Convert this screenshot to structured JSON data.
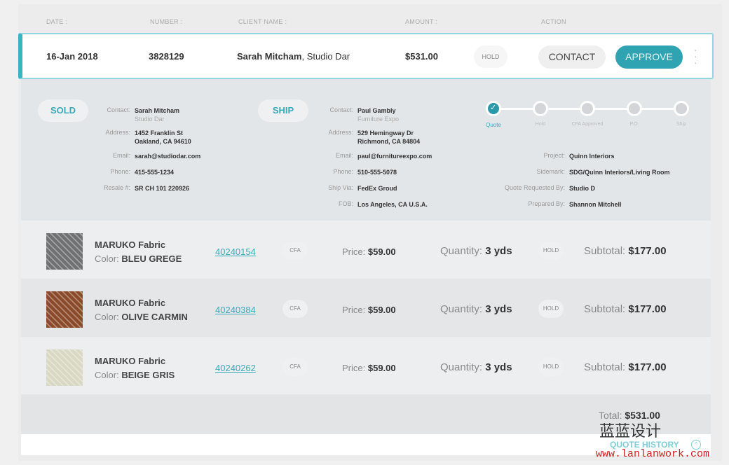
{
  "columns": [
    "DATE :",
    "NUMBER :",
    "CLIENT NAME :",
    "AMOUNT :",
    "ACTION"
  ],
  "order": {
    "date": "16-Jan 2018",
    "number": "3828129",
    "client": "Sarah Mitcham",
    "company": ", Studio Dar",
    "amount": "$531.00",
    "status": "HOLD",
    "contact_label": "CONTACT",
    "approve_label": "APPROVE"
  },
  "sold": {
    "tag": "SOLD",
    "contact_label": "Contact:",
    "contact": "Sarah Mitcham",
    "company": "Studio Dar",
    "address_label": "Address:",
    "address1": "1452 Franklin St",
    "address2": "Oakland, CA 94610",
    "email_label": "Email:",
    "email": "sarah@studiodar.com",
    "phone_label": "Phone:",
    "phone": "415-555-1234",
    "resale_label": "Resale #:",
    "resale": "SR CH 101 220926"
  },
  "ship": {
    "tag": "SHIP",
    "contact_label": "Contact:",
    "contact": "Paul Gambly",
    "company": "Furniture Expo",
    "address_label": "Address:",
    "address1": "529 Hemingway Dr",
    "address2": "Richmond, CA 84804",
    "email_label": "Email:",
    "email": "paul@furnitureexpo.com",
    "phone_label": "Phone:",
    "phone": "510-555-5078",
    "via_label": "Ship Via:",
    "via": "FedEx Groud",
    "fob_label": "FOB:",
    "fob": "Los Angeles, CA U.S.A."
  },
  "progress": {
    "steps": [
      "Quote",
      "Hold",
      "CFA Approved",
      "P.O.",
      "Ship"
    ],
    "completed": 1
  },
  "project": {
    "project_label": "Project:",
    "project": "Quinn Interiors",
    "sidemark_label": "Sidemark:",
    "sidemark": "SDG/Quinn Interiors/Living Room",
    "requested_label": "Quote Requested By:",
    "requested": "Studio D",
    "prepared_label": "Prepared By:",
    "prepared": "Shannon Mitchell"
  },
  "items": [
    {
      "name": "MARUKO Fabric",
      "color_label": "Color:",
      "color": "BLEU GREGE",
      "sku": "40240154",
      "badge": "CFA",
      "price_label": "Price:",
      "price": "$59.00",
      "qty_label": "Quantity:",
      "qty": "3 yds",
      "status": "HOLD",
      "subtotal_label": "Subtotal:",
      "subtotal": "$177.00",
      "swatch": "#6e7072"
    },
    {
      "name": "MARUKO Fabric",
      "color_label": "Color:",
      "color": "OLIVE CARMIN",
      "sku": "40240384",
      "badge": "CFA",
      "price_label": "Price:",
      "price": "$59.00",
      "qty_label": "Quantity:",
      "qty": "3 yds",
      "status": "HOLD",
      "subtotal_label": "Subtotal:",
      "subtotal": "$177.00",
      "swatch": "#8a4a2a"
    },
    {
      "name": "MARUKO Fabric",
      "color_label": "Color:",
      "color": "BEIGE GRIS",
      "sku": "40240262",
      "badge": "CFA",
      "price_label": "Price:",
      "price": "$59.00",
      "qty_label": "Quantity:",
      "qty": "3 yds",
      "status": "HOLD",
      "subtotal_label": "Subtotal:",
      "subtotal": "$177.00",
      "swatch": "#d8d8c4"
    }
  ],
  "total": {
    "label": "Total:",
    "value": "$531.00"
  },
  "quote_history": "QUOTE HISTORY",
  "watermark": {
    "brand": "蓝蓝设计",
    "url": "www.lanlanwork.com"
  },
  "colors": {
    "accent": "#3aaab8"
  }
}
